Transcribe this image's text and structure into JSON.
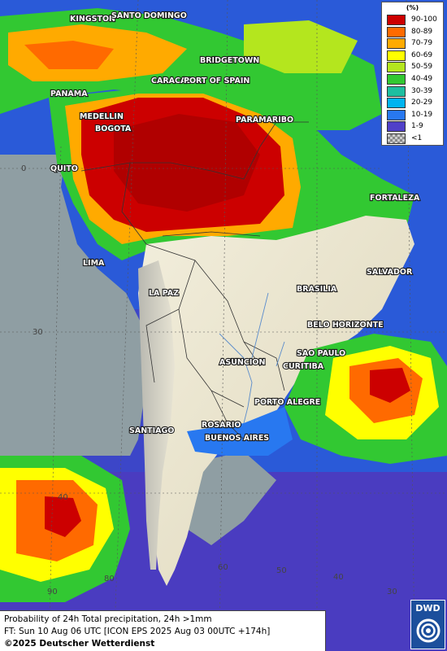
{
  "legend": {
    "unit": "(%)",
    "items": [
      {
        "label": "90-100",
        "color": "#cc0000"
      },
      {
        "label": "80-89",
        "color": "#ff6a00"
      },
      {
        "label": "70-79",
        "color": "#ffaa00"
      },
      {
        "label": "60-69",
        "color": "#ffff00"
      },
      {
        "label": "50-59",
        "color": "#b4e61e"
      },
      {
        "label": "40-49",
        "color": "#32c832"
      },
      {
        "label": "30-39",
        "color": "#1ebea0"
      },
      {
        "label": "20-29",
        "color": "#00b4f0"
      },
      {
        "label": "10-19",
        "color": "#2878f0"
      },
      {
        "label": "1-9",
        "color": "#5040c8"
      },
      {
        "label": "<1",
        "color": "checker"
      }
    ]
  },
  "info": {
    "line1": "Probability of 24h Total precipitation, 24h >1mm",
    "line2": "FT: Sun 10 Aug 06 UTC [ICON EPS 2025 Aug 03 00UTC +174h]",
    "line3": "©2025 Deutscher Wetterdienst"
  },
  "logo": {
    "text": "DWD"
  },
  "grid_labels": {
    "lat_0": "0",
    "lat_30": "30",
    "lat_40": "40",
    "lon_90": "90",
    "lon_80": "80",
    "lon_60": "60",
    "lon_50": "50",
    "lon_40": "40",
    "lon_30": "30"
  },
  "cities": {
    "kingston": "KINGSTON",
    "santo_domingo": "SANTO DOMINGO",
    "bridgetown": "BRIDGETOWN",
    "caracas": "CARACAS",
    "port_of_spain": "PORT OF SPAIN",
    "panama": "PANAMA",
    "medellin": "MEDELLIN",
    "bogota": "BOGOTA",
    "paramaribo": "PARAMARIBO",
    "quito": "QUITO",
    "fortaleza": "FORTALEZA",
    "lima": "LIMA",
    "salvador": "SALVADOR",
    "brasilia": "BRASILIA",
    "la_paz": "LA PAZ",
    "belo_horizonte": "BELO HORIZONTE",
    "sao_paulo": "SAO PAULO",
    "asuncion": "ASUNCION",
    "curitiba": "CURITIBA",
    "porto_alegre": "PORTO ALEGRE",
    "santiago": "SANTIAGO",
    "rosario": "ROSARIO",
    "buenos_aires": "BUENOS AIRES"
  }
}
